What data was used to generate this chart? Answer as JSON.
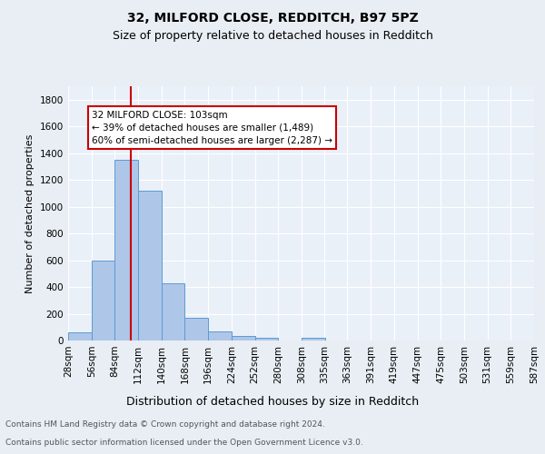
{
  "title1": "32, MILFORD CLOSE, REDDITCH, B97 5PZ",
  "title2": "Size of property relative to detached houses in Redditch",
  "xlabel": "Distribution of detached houses by size in Redditch",
  "ylabel": "Number of detached properties",
  "bin_labels": [
    "28sqm",
    "56sqm",
    "84sqm",
    "112sqm",
    "140sqm",
    "168sqm",
    "196sqm",
    "224sqm",
    "252sqm",
    "280sqm",
    "308sqm",
    "335sqm",
    "363sqm",
    "391sqm",
    "419sqm",
    "447sqm",
    "475sqm",
    "503sqm",
    "531sqm",
    "559sqm",
    "587sqm"
  ],
  "bin_edges": [
    28,
    56,
    84,
    112,
    140,
    168,
    196,
    224,
    252,
    280,
    308,
    335,
    363,
    391,
    419,
    447,
    475,
    503,
    531,
    559,
    587
  ],
  "bar_heights": [
    60,
    600,
    1350,
    1120,
    425,
    170,
    65,
    35,
    18,
    0,
    18,
    0,
    0,
    0,
    0,
    0,
    0,
    0,
    0,
    0
  ],
  "bar_color": "#aec6e8",
  "bar_edge_color": "#5b9bd5",
  "property_size": 103,
  "vline_color": "#cc0000",
  "annotation_line1": "32 MILFORD CLOSE: 103sqm",
  "annotation_line2": "← 39% of detached houses are smaller (1,489)",
  "annotation_line3": "60% of semi-detached houses are larger (2,287) →",
  "annotation_box_color": "#ffffff",
  "annotation_box_edge": "#cc0000",
  "ylim": [
    0,
    1900
  ],
  "yticks": [
    0,
    200,
    400,
    600,
    800,
    1000,
    1200,
    1400,
    1600,
    1800
  ],
  "footer1": "Contains HM Land Registry data © Crown copyright and database right 2024.",
  "footer2": "Contains public sector information licensed under the Open Government Licence v3.0.",
  "background_color": "#e8eef4",
  "plot_bg_color": "#eaf0f8",
  "grid_color": "#ffffff",
  "title1_fontsize": 10,
  "title2_fontsize": 9,
  "xlabel_fontsize": 9,
  "ylabel_fontsize": 8,
  "tick_fontsize": 7.5,
  "footer_fontsize": 6.5,
  "annotation_fontsize": 7.5
}
